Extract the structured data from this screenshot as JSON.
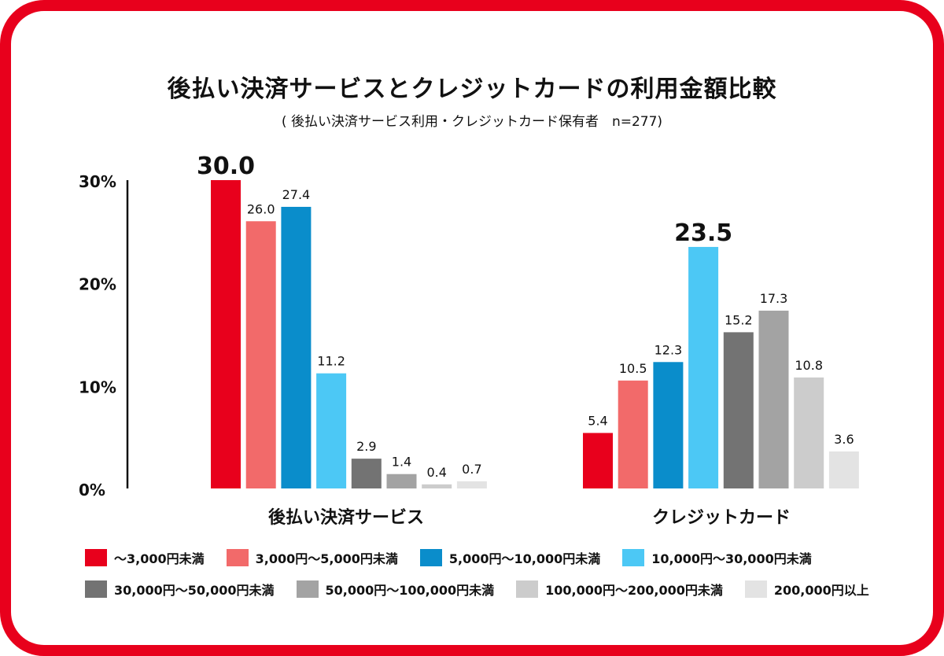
{
  "chart_data": {
    "type": "bar",
    "title": "後払い決済サービスとクレジットカードの利用金額比較",
    "subtitle": "( 後払い決済サービス利用・クレジットカード保有者　n=277)",
    "ylim": [
      0,
      30
    ],
    "yticks": [
      {
        "value": 0,
        "label": "0%"
      },
      {
        "value": 10,
        "label": "10%"
      },
      {
        "value": 20,
        "label": "20%"
      },
      {
        "value": 30,
        "label": "30%"
      }
    ],
    "categories": [
      "後払い決済サービス",
      "クレジットカード"
    ],
    "series": [
      {
        "name": "〜3,000円未満",
        "color": "#e8001c",
        "values": [
          30.0,
          5.4
        ],
        "labels": [
          "30.0",
          "5.4"
        ]
      },
      {
        "name": "3,000円〜5,000円未満",
        "color": "#f26a6a",
        "values": [
          26.0,
          10.5
        ],
        "labels": [
          "26.0",
          "10.5"
        ]
      },
      {
        "name": "5,000円〜10,000円未満",
        "color": "#0a8dcb",
        "values": [
          27.4,
          12.3
        ],
        "labels": [
          "27.4",
          "12.3"
        ]
      },
      {
        "name": "10,000円〜30,000円未満",
        "color": "#4cc8f5",
        "values": [
          11.2,
          23.5
        ],
        "labels": [
          "11.2",
          "23.5"
        ]
      },
      {
        "name": "30,000円〜50,000円未満",
        "color": "#737373",
        "values": [
          2.9,
          15.2
        ],
        "labels": [
          "2.9",
          "15.2"
        ]
      },
      {
        "name": "50,000円〜100,000円未満",
        "color": "#a3a3a3",
        "values": [
          1.4,
          17.3
        ],
        "labels": [
          "1.4",
          "17.3"
        ]
      },
      {
        "name": "100,000円〜200,000円未満",
        "color": "#cccccc",
        "values": [
          0.4,
          10.8
        ],
        "labels": [
          "0.4",
          "10.8"
        ]
      },
      {
        "name": "200,000円以上",
        "color": "#e3e3e3",
        "values": [
          0.7,
          3.6
        ],
        "labels": [
          "0.7",
          "3.6"
        ]
      }
    ],
    "highlight": [
      {
        "category": 0,
        "series": 0
      },
      {
        "category": 1,
        "series": 3
      }
    ],
    "legend_position": "bottom"
  }
}
